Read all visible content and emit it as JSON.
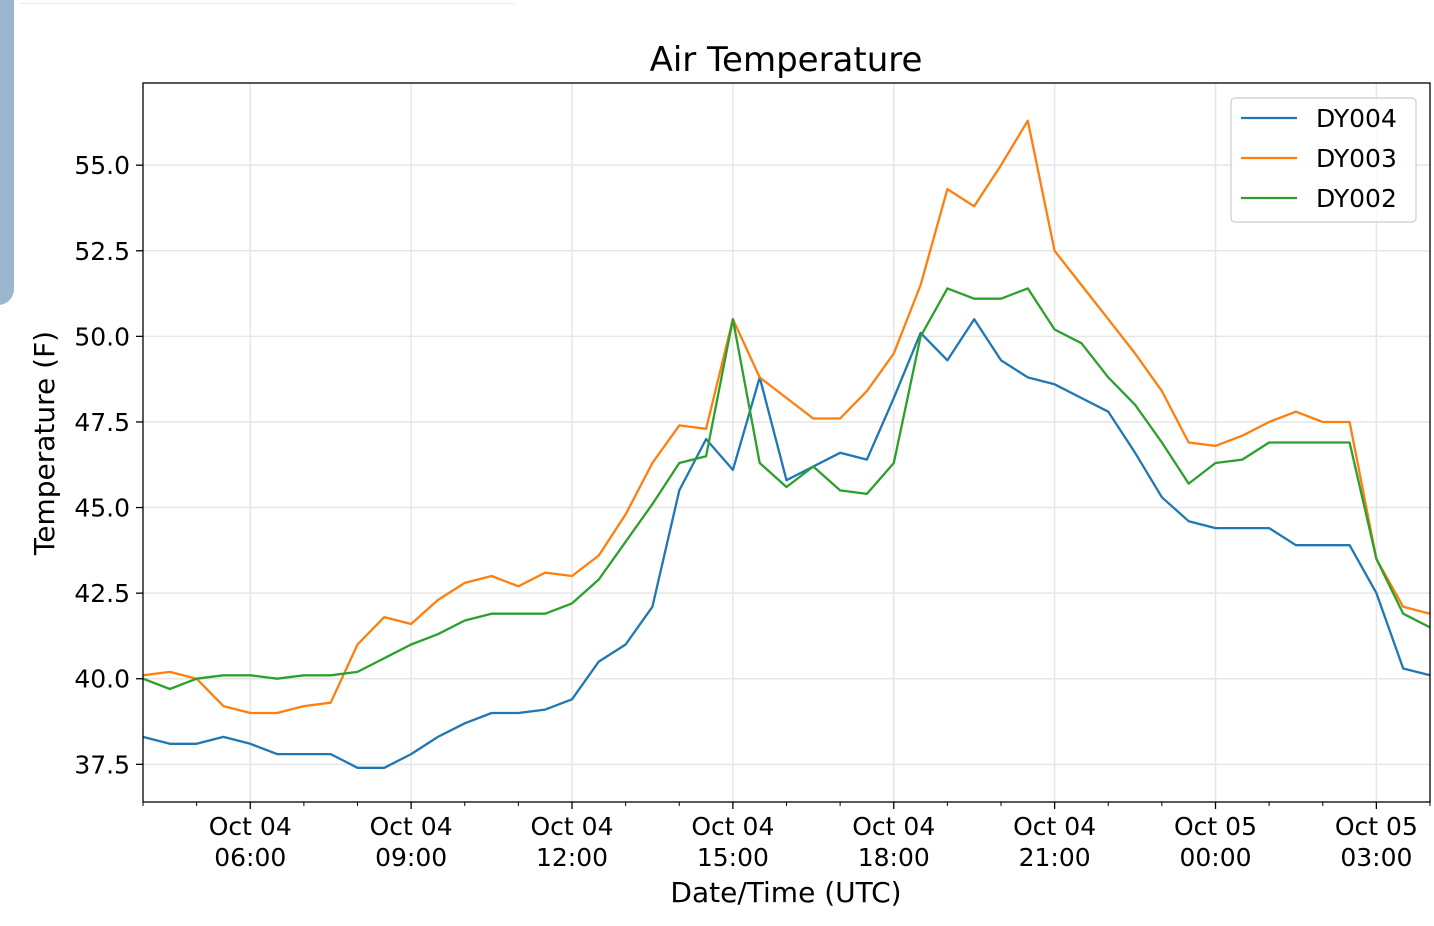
{
  "chart_data": {
    "type": "line",
    "title": "Air Temperature",
    "xlabel": "Date/Time (UTC)",
    "ylabel": "Temperature (F)",
    "x_unit": "hours since Oct 04 04:00 UTC",
    "xlim": [
      0,
      24
    ],
    "ylim": [
      36.4,
      57.4
    ],
    "grid": true,
    "legend_position": "top-right",
    "yticks": [
      37.5,
      40.0,
      42.5,
      45.0,
      47.5,
      50.0,
      52.5,
      55.0
    ],
    "ytick_labels": [
      "37.5",
      "40.0",
      "42.5",
      "45.0",
      "47.5",
      "50.0",
      "52.5",
      "55.0"
    ],
    "xticks": [
      2,
      5,
      8,
      11,
      14,
      17,
      20,
      23
    ],
    "xtick_labels": [
      [
        "Oct 04",
        "06:00"
      ],
      [
        "Oct 04",
        "09:00"
      ],
      [
        "Oct 04",
        "12:00"
      ],
      [
        "Oct 04",
        "15:00"
      ],
      [
        "Oct 04",
        "18:00"
      ],
      [
        "Oct 04",
        "21:00"
      ],
      [
        "Oct 05",
        "00:00"
      ],
      [
        "Oct 05",
        "03:00"
      ]
    ],
    "x": [
      0,
      0.5,
      1,
      1.5,
      2,
      2.5,
      3,
      3.5,
      4,
      4.5,
      5,
      5.5,
      6,
      6.5,
      7,
      7.5,
      8,
      8.5,
      9,
      9.5,
      10,
      10.5,
      11,
      11.5,
      12,
      12.5,
      13,
      13.5,
      14,
      14.5,
      15,
      15.5,
      16,
      16.5,
      17,
      17.5,
      18,
      18.5,
      19,
      19.5,
      20,
      20.5,
      21,
      21.5,
      22,
      22.5,
      23,
      23.5,
      24
    ],
    "series": [
      {
        "name": "DY004",
        "color": "#1f77b4",
        "values": [
          38.3,
          38.1,
          38.1,
          38.3,
          38.1,
          37.8,
          37.8,
          37.8,
          37.4,
          37.4,
          37.8,
          38.3,
          38.7,
          39.0,
          39.0,
          39.1,
          39.4,
          40.5,
          41.0,
          42.1,
          45.5,
          47.0,
          46.1,
          48.8,
          45.8,
          46.2,
          46.6,
          46.4,
          48.2,
          50.1,
          49.3,
          50.5,
          49.3,
          48.8,
          48.6,
          48.2,
          47.8,
          46.6,
          45.3,
          44.6,
          44.4,
          44.4,
          44.4,
          43.9,
          43.9,
          43.9,
          42.5,
          40.3,
          40.1
        ]
      },
      {
        "name": "DY003",
        "color": "#ff7f0e",
        "values": [
          40.1,
          40.2,
          40.0,
          39.2,
          39.0,
          39.0,
          39.2,
          39.3,
          41.0,
          41.8,
          41.6,
          42.3,
          42.8,
          43.0,
          42.7,
          43.1,
          43.0,
          43.6,
          44.8,
          46.3,
          47.4,
          47.3,
          50.5,
          48.8,
          48.2,
          47.6,
          47.6,
          48.4,
          49.5,
          51.5,
          54.3,
          53.8,
          55.0,
          56.3,
          52.5,
          51.5,
          50.5,
          49.5,
          48.4,
          46.9,
          46.8,
          47.1,
          47.5,
          47.8,
          47.5,
          47.5,
          43.5,
          42.1,
          41.9
        ]
      },
      {
        "name": "DY002",
        "color": "#2ca02c",
        "values": [
          40.0,
          39.7,
          40.0,
          40.1,
          40.1,
          40.0,
          40.1,
          40.1,
          40.2,
          40.6,
          41.0,
          41.3,
          41.7,
          41.9,
          41.9,
          41.9,
          42.2,
          42.9,
          44.0,
          45.1,
          46.3,
          46.5,
          50.5,
          46.3,
          45.6,
          46.2,
          45.5,
          45.4,
          46.3,
          50.0,
          51.4,
          51.1,
          51.1,
          51.4,
          50.2,
          49.8,
          48.8,
          48.0,
          46.9,
          45.7,
          46.3,
          46.4,
          46.9,
          46.9,
          46.9,
          46.9,
          43.5,
          41.9,
          41.5
        ]
      }
    ]
  }
}
